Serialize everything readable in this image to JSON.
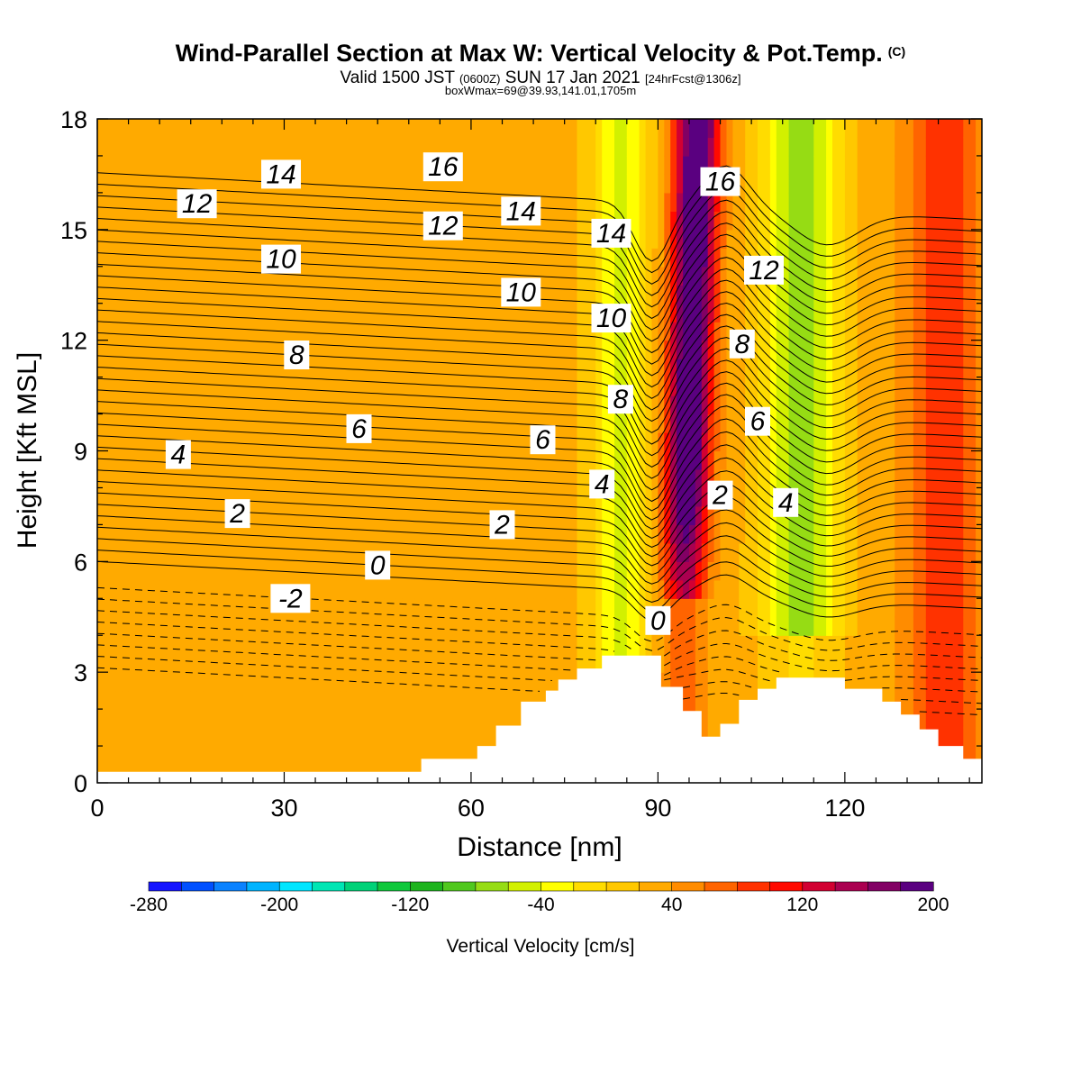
{
  "header": {
    "title": "Wind-Parallel Section at Max W: Vertical Velocity & Pot.Temp.",
    "copyright": "(C)",
    "valid_prefix": "Valid 1500 JST",
    "valid_utc": "(0600Z)",
    "valid_date": "SUN 17 Jan 2021",
    "forecast": "[24hrFcst@1306z]",
    "box_wmax": "boxWmax=69@39.93,141.01,1705m"
  },
  "colors": {
    "terrain": "#ffffff",
    "contour": "#000000",
    "bin_colors": [
      "#1414ff",
      "#0050ff",
      "#0a82ff",
      "#00b4ff",
      "#00e6ff",
      "#00e6b4",
      "#00d278",
      "#10c83c",
      "#1eb41e",
      "#50c81e",
      "#96dc14",
      "#d2f000",
      "#ffff00",
      "#ffdc00",
      "#ffc800",
      "#ffaa00",
      "#ff8c00",
      "#ff6400",
      "#ff3200",
      "#ff0a00",
      "#d20032",
      "#aa0050",
      "#820064",
      "#5a0080"
    ]
  },
  "chart_data": {
    "type": "heatmap",
    "xlabel": "Distance [nm]",
    "ylabel": "Height [Kft MSL]",
    "xlim": [
      0,
      142
    ],
    "ylim": [
      0,
      18
    ],
    "xticks": [
      0,
      30,
      60,
      90,
      120
    ],
    "yticks": [
      0,
      3,
      6,
      9,
      12,
      15,
      18
    ],
    "colorbar": {
      "label": "Vertical Velocity [cm/s]",
      "min": -280,
      "max": 200,
      "bin_width": 20,
      "tick_labels": [
        "-280",
        "-200",
        "-120",
        "-40",
        "40",
        "120",
        "200"
      ],
      "tick_values": [
        -280,
        -200,
        -120,
        -40,
        40,
        120,
        200
      ]
    },
    "vertical_velocity_bands": [
      {
        "x_center": 33,
        "half_width": 10,
        "amplitude": 10
      },
      {
        "x_center": 67,
        "half_width": 6,
        "amplitude": 10
      },
      {
        "x_center": 84,
        "half_width": 4.5,
        "amplitude": -70
      },
      {
        "x_center": 95,
        "half_width": 3.5,
        "amplitude": 195
      },
      {
        "x_center": 113,
        "half_width": 6,
        "amplitude": -100
      },
      {
        "x_center": 136,
        "half_width": 6,
        "amplitude": 65
      }
    ],
    "potential_temperature_labels": [
      {
        "text": "14",
        "x": 29.5,
        "y": 16.5
      },
      {
        "text": "16",
        "x": 55.5,
        "y": 16.7
      },
      {
        "text": "12",
        "x": 16,
        "y": 15.7
      },
      {
        "text": "12",
        "x": 55.5,
        "y": 15.1
      },
      {
        "text": "14",
        "x": 68,
        "y": 15.5
      },
      {
        "text": "14",
        "x": 82.5,
        "y": 14.9
      },
      {
        "text": "16",
        "x": 100,
        "y": 16.3
      },
      {
        "text": "10",
        "x": 29.5,
        "y": 14.2
      },
      {
        "text": "10",
        "x": 68,
        "y": 13.3
      },
      {
        "text": "12",
        "x": 107,
        "y": 13.9
      },
      {
        "text": "10",
        "x": 82.5,
        "y": 12.6
      },
      {
        "text": "8",
        "x": 32,
        "y": 11.6
      },
      {
        "text": "8",
        "x": 103.5,
        "y": 11.9
      },
      {
        "text": "8",
        "x": 84,
        "y": 10.4
      },
      {
        "text": "6",
        "x": 42,
        "y": 9.6
      },
      {
        "text": "6",
        "x": 71.5,
        "y": 9.3
      },
      {
        "text": "6",
        "x": 106,
        "y": 9.8
      },
      {
        "text": "4",
        "x": 13,
        "y": 8.9
      },
      {
        "text": "4",
        "x": 81,
        "y": 8.1
      },
      {
        "text": "4",
        "x": 110.5,
        "y": 7.6
      },
      {
        "text": "2",
        "x": 22.5,
        "y": 7.3
      },
      {
        "text": "2",
        "x": 65,
        "y": 7.0
      },
      {
        "text": "2",
        "x": 100,
        "y": 7.8
      },
      {
        "text": "0",
        "x": 45,
        "y": 5.9
      },
      {
        "text": "-2",
        "x": 31,
        "y": 5.0
      },
      {
        "text": "0",
        "x": 90,
        "y": 4.4
      }
    ],
    "terrain": [
      {
        "x": 0,
        "y": 0.3
      },
      {
        "x": 52,
        "y": 0.3
      },
      {
        "x": 52,
        "y": 0.65
      },
      {
        "x": 61,
        "y": 0.65
      },
      {
        "x": 61,
        "y": 1.0
      },
      {
        "x": 64,
        "y": 1.0
      },
      {
        "x": 64,
        "y": 1.55
      },
      {
        "x": 68,
        "y": 1.55
      },
      {
        "x": 68,
        "y": 2.2
      },
      {
        "x": 72,
        "y": 2.2
      },
      {
        "x": 72,
        "y": 2.5
      },
      {
        "x": 74,
        "y": 2.5
      },
      {
        "x": 74,
        "y": 2.8
      },
      {
        "x": 77,
        "y": 2.8
      },
      {
        "x": 77,
        "y": 3.1
      },
      {
        "x": 81,
        "y": 3.1
      },
      {
        "x": 81,
        "y": 3.45
      },
      {
        "x": 90.5,
        "y": 3.45
      },
      {
        "x": 90.5,
        "y": 2.6
      },
      {
        "x": 94,
        "y": 2.6
      },
      {
        "x": 94,
        "y": 1.95
      },
      {
        "x": 97,
        "y": 1.95
      },
      {
        "x": 97,
        "y": 1.25
      },
      {
        "x": 100,
        "y": 1.25
      },
      {
        "x": 100,
        "y": 1.6
      },
      {
        "x": 103,
        "y": 1.6
      },
      {
        "x": 103,
        "y": 2.25
      },
      {
        "x": 106,
        "y": 2.25
      },
      {
        "x": 106,
        "y": 2.55
      },
      {
        "x": 109,
        "y": 2.55
      },
      {
        "x": 109,
        "y": 2.85
      },
      {
        "x": 120,
        "y": 2.85
      },
      {
        "x": 120,
        "y": 2.55
      },
      {
        "x": 126,
        "y": 2.55
      },
      {
        "x": 126,
        "y": 2.2
      },
      {
        "x": 129,
        "y": 2.2
      },
      {
        "x": 129,
        "y": 1.85
      },
      {
        "x": 132,
        "y": 1.85
      },
      {
        "x": 132,
        "y": 1.45
      },
      {
        "x": 135,
        "y": 1.45
      },
      {
        "x": 135,
        "y": 1.0
      },
      {
        "x": 139,
        "y": 1.0
      },
      {
        "x": 139,
        "y": 0.65
      },
      {
        "x": 142,
        "y": 0.65
      }
    ]
  }
}
